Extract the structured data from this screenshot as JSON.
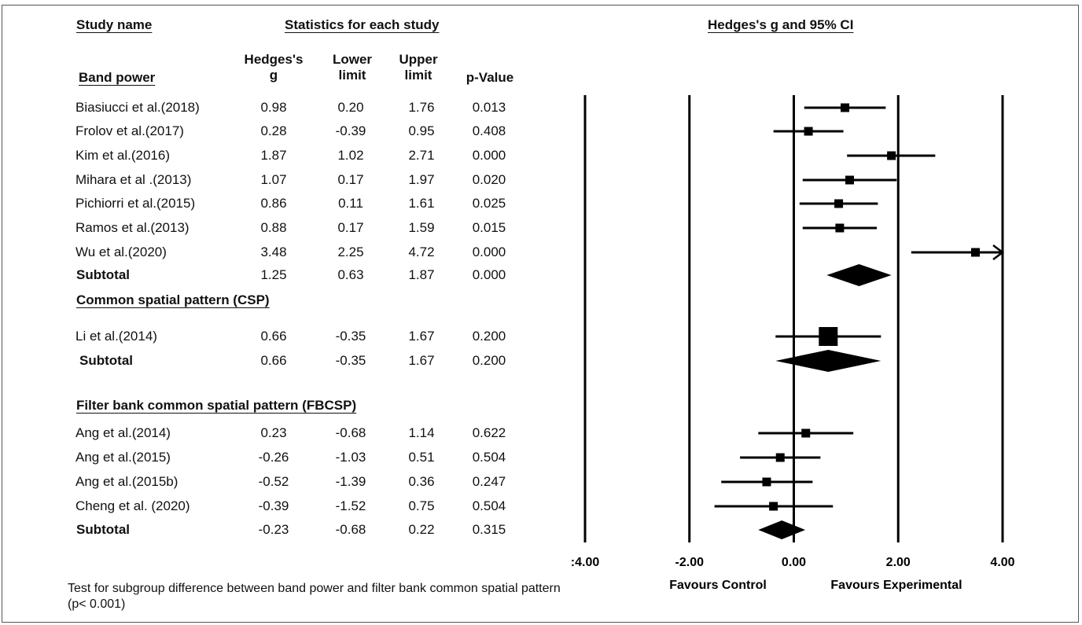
{
  "headers": {
    "study_name": "Study name",
    "stats": "Statistics for each study",
    "ci": "Hedges's g and 95% CI",
    "col_g": [
      "Hedges's",
      "g"
    ],
    "col_lower": [
      "Lower",
      "limit"
    ],
    "col_upper": [
      "Upper",
      "limit"
    ],
    "col_p": "p-Value"
  },
  "groups": [
    {
      "title": "Band power",
      "studies": [
        {
          "name": "Biasiucci et al.(2018)",
          "g": "0.98",
          "lower": "0.20",
          "upper": "1.76",
          "p": "0.013"
        },
        {
          "name": "Frolov et al.(2017)",
          "g": "0.28",
          "lower": "-0.39",
          "upper": "0.95",
          "p": "0.408"
        },
        {
          "name": "Kim et al.(2016)",
          "g": "1.87",
          "lower": "1.02",
          "upper": "2.71",
          "p": "0.000"
        },
        {
          "name": "Mihara et al .(2013)",
          "g": "1.07",
          "lower": "0.17",
          "upper": "1.97",
          "p": "0.020"
        },
        {
          "name": "Pichiorri et al.(2015)",
          "g": "0.86",
          "lower": "0.11",
          "upper": "1.61",
          "p": "0.025"
        },
        {
          "name": "Ramos et al.(2013)",
          "g": "0.88",
          "lower": "0.17",
          "upper": "1.59",
          "p": "0.015"
        },
        {
          "name": "Wu et al.(2020)",
          "g": "3.48",
          "lower": "2.25",
          "upper": "4.72",
          "p": "0.000"
        }
      ],
      "subtotal": {
        "name": "Subtotal",
        "g": "1.25",
        "lower": "0.63",
        "upper": "1.87",
        "p": "0.000"
      }
    },
    {
      "title": "Common spatial pattern (CSP)",
      "studies": [
        {
          "name": "Li et al.(2014)",
          "g": "0.66",
          "lower": "-0.35",
          "upper": "1.67",
          "p": "0.200"
        }
      ],
      "subtotal": {
        "name": "Subtotal",
        "g": "0.66",
        "lower": "-0.35",
        "upper": "1.67",
        "p": "0.200"
      }
    },
    {
      "title": "Filter bank common spatial pattern (FBCSP)",
      "studies": [
        {
          "name": "Ang et al.(2014)",
          "g": "0.23",
          "lower": "-0.68",
          "upper": "1.14",
          "p": "0.622"
        },
        {
          "name": "Ang et al.(2015)",
          "g": "-0.26",
          "lower": "-1.03",
          "upper": "0.51",
          "p": "0.504"
        },
        {
          "name": "Ang et al.(2015b)",
          "g": "-0.52",
          "lower": "-1.39",
          "upper": "0.36",
          "p": "0.247"
        },
        {
          "name": "Cheng et al. (2020)",
          "g": "-0.39",
          "lower": "-1.52",
          "upper": "0.75",
          "p": "0.504"
        }
      ],
      "subtotal": {
        "name": "Subtotal",
        "g": "-0.23",
        "lower": "-0.68",
        "upper": "0.22",
        "p": "0.315"
      }
    }
  ],
  "note": "Test for subgroup difference between band power and filter bank common spatial pattern (p< 0.001)",
  "chart_data": {
    "type": "forest",
    "xlim": [
      -4,
      4
    ],
    "ticks": [
      -4,
      -2,
      0,
      2,
      4
    ],
    "tick_labels": [
      ":4.00",
      "-2.00",
      "0.00",
      "2.00",
      "4.00"
    ],
    "favours_left": "Favours Control",
    "favours_right": "Favours Experimental",
    "grid_lines_at": [
      -4,
      -2,
      0,
      2,
      4
    ]
  }
}
